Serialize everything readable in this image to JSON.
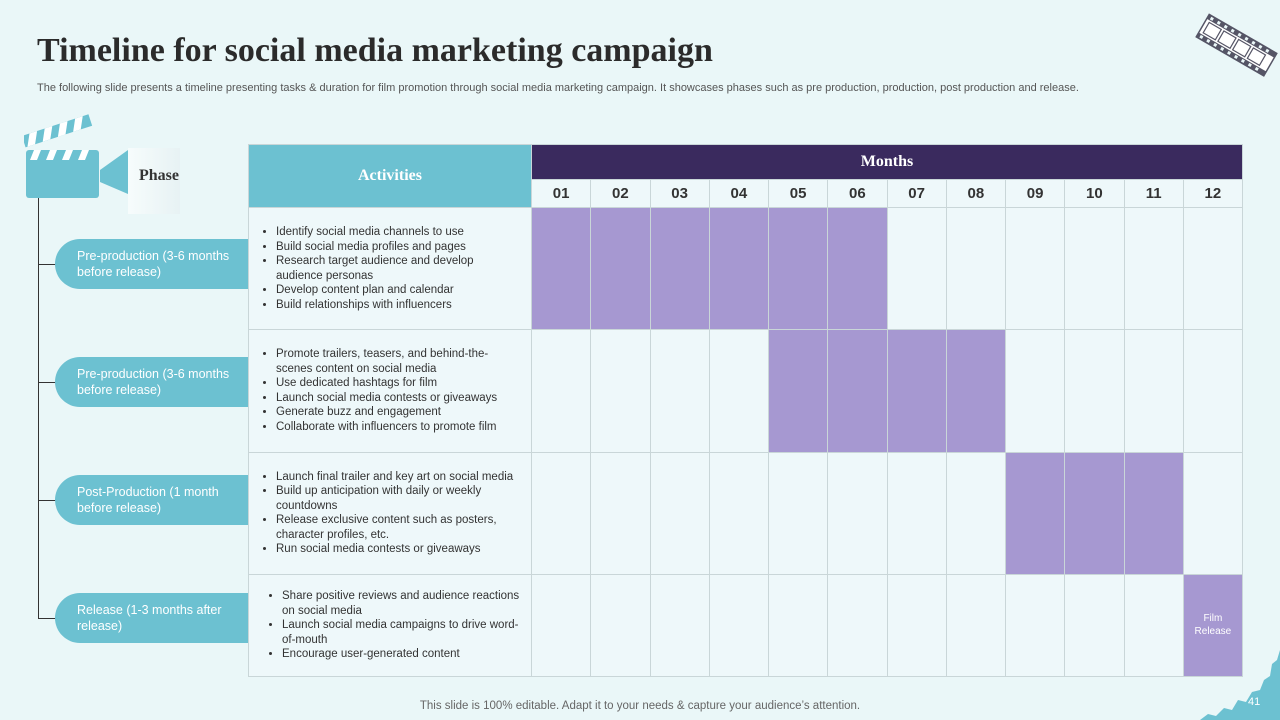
{
  "title": "Timeline for social media marketing campaign",
  "subtitle": "The following slide presents a timeline presenting tasks & duration for film promotion through social media marketing campaign. It showcases phases such as pre production, production, post production and release.",
  "headers": {
    "phase": "Phase",
    "activities": "Activities",
    "months": "Months",
    "month_labels": [
      "01",
      "02",
      "03",
      "04",
      "05",
      "06",
      "07",
      "08",
      "09",
      "10",
      "11",
      "12"
    ]
  },
  "phases": [
    {
      "label": "Pre-production (3-6 months before release)",
      "activities": [
        "Identify social media channels to use",
        "Build social media profiles and pages",
        "Research target audience and develop audience personas",
        "Develop content plan and calendar",
        "Build relationships with influencers"
      ],
      "active_months": [
        1,
        2,
        3,
        4,
        5,
        6
      ]
    },
    {
      "label": "Pre-production (3-6 months before release)",
      "activities": [
        "Promote trailers, teasers, and behind-the-scenes content on social media",
        "Use dedicated hashtags for film",
        "Launch social media contests or giveaways",
        "Generate buzz and engagement",
        "Collaborate with influencers to promote film"
      ],
      "active_months": [
        5,
        6,
        7,
        8
      ]
    },
    {
      "label": "Post-Production (1 month before release)",
      "activities": [
        "Launch final trailer and key art on social media",
        "Build up anticipation with daily or weekly countdowns",
        "Release exclusive content such as posters, character profiles, etc.",
        "Run social media contests or giveaways"
      ],
      "active_months": [
        9,
        10,
        11
      ]
    },
    {
      "label": "Release (1-3 months after release)",
      "activities": [
        "Share positive reviews and audience reactions on social media",
        "Launch social media campaigns to drive word-of-mouth",
        "Encourage user-generated content"
      ],
      "active_months": [
        12
      ],
      "month_note": "Film Release"
    }
  ],
  "colors": {
    "accent": "#6cc1d1",
    "header_dark": "#3a2a5e",
    "bar": "#a698d1",
    "background": "#eaf7f8"
  },
  "footer": "This slide is 100% editable. Adapt it to your needs & capture your audience’s attention.",
  "page_number": "41"
}
